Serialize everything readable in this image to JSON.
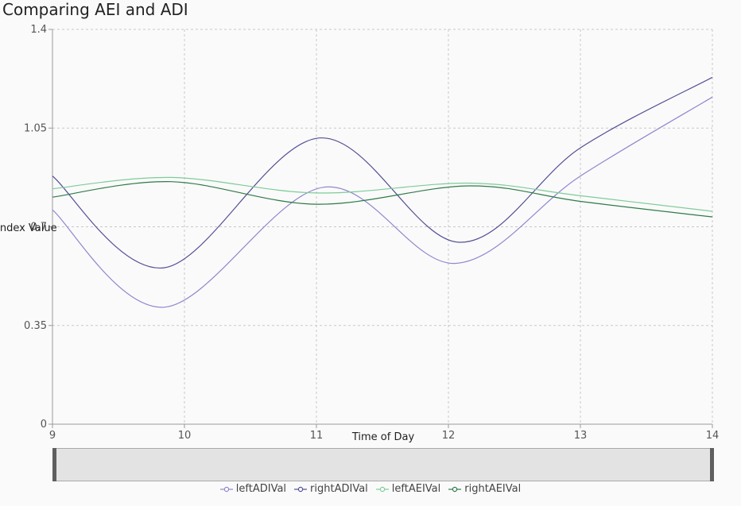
{
  "chart_data": {
    "type": "line",
    "title": "Comparing AEI and ADI",
    "xlabel": "Time of Day",
    "ylabel": "Index Value",
    "xlim": [
      9,
      14
    ],
    "ylim": [
      0,
      1.4
    ],
    "x_ticks": [
      9,
      10,
      11,
      12,
      13,
      14
    ],
    "y_ticks": [
      0,
      0.35,
      0.7,
      1.05,
      1.4
    ],
    "y_tick_labels": [
      "0",
      "0.35",
      "0.7",
      "1.05",
      "1.4"
    ],
    "grid": true,
    "legend": "bottom",
    "series": [
      {
        "name": "leftADIVal",
        "color": "#8f87cf",
        "x": [
          9,
          9.85,
          11.05,
          12.05,
          13,
          14
        ],
        "values": [
          0.76,
          0.415,
          0.84,
          0.57,
          0.88,
          1.16
        ]
      },
      {
        "name": "rightADIVal",
        "color": "#545096",
        "x": [
          9,
          9.85,
          11.02,
          12.08,
          13,
          14
        ],
        "values": [
          0.88,
          0.555,
          1.015,
          0.645,
          0.98,
          1.23
        ]
      },
      {
        "name": "leftAEIVal",
        "color": "#7ecb99",
        "x": [
          9,
          9.9,
          11.0,
          12.15,
          13,
          14
        ],
        "values": [
          0.835,
          0.875,
          0.82,
          0.855,
          0.81,
          0.755
        ]
      },
      {
        "name": "rightAEIVal",
        "color": "#2f7a48",
        "x": [
          9,
          9.9,
          11.0,
          12.15,
          13,
          14
        ],
        "values": [
          0.805,
          0.86,
          0.78,
          0.845,
          0.79,
          0.735
        ]
      }
    ]
  }
}
